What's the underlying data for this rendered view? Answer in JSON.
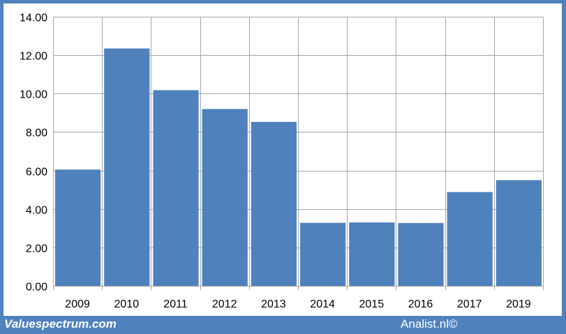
{
  "chart_data": {
    "type": "bar",
    "title": "",
    "xlabel": "",
    "ylabel": "",
    "categories": [
      "2009",
      "2010",
      "2011",
      "2012",
      "2013",
      "2014",
      "2015",
      "2016",
      "2017",
      "2019"
    ],
    "values": [
      6.05,
      12.35,
      10.18,
      9.2,
      8.53,
      3.28,
      3.3,
      3.27,
      4.88,
      5.5
    ],
    "ylim": [
      0,
      14
    ],
    "yticks": [
      "0.00",
      "2.00",
      "4.00",
      "6.00",
      "8.00",
      "10.00",
      "12.00",
      "14.00"
    ],
    "grid": true,
    "bar_color": "#4f81bd",
    "grid_color": "#a6a6a6"
  },
  "footer": {
    "left": "Valuespectrum.com",
    "right": "Analist.nl©"
  },
  "colors": {
    "frame": "#4f81bd"
  }
}
